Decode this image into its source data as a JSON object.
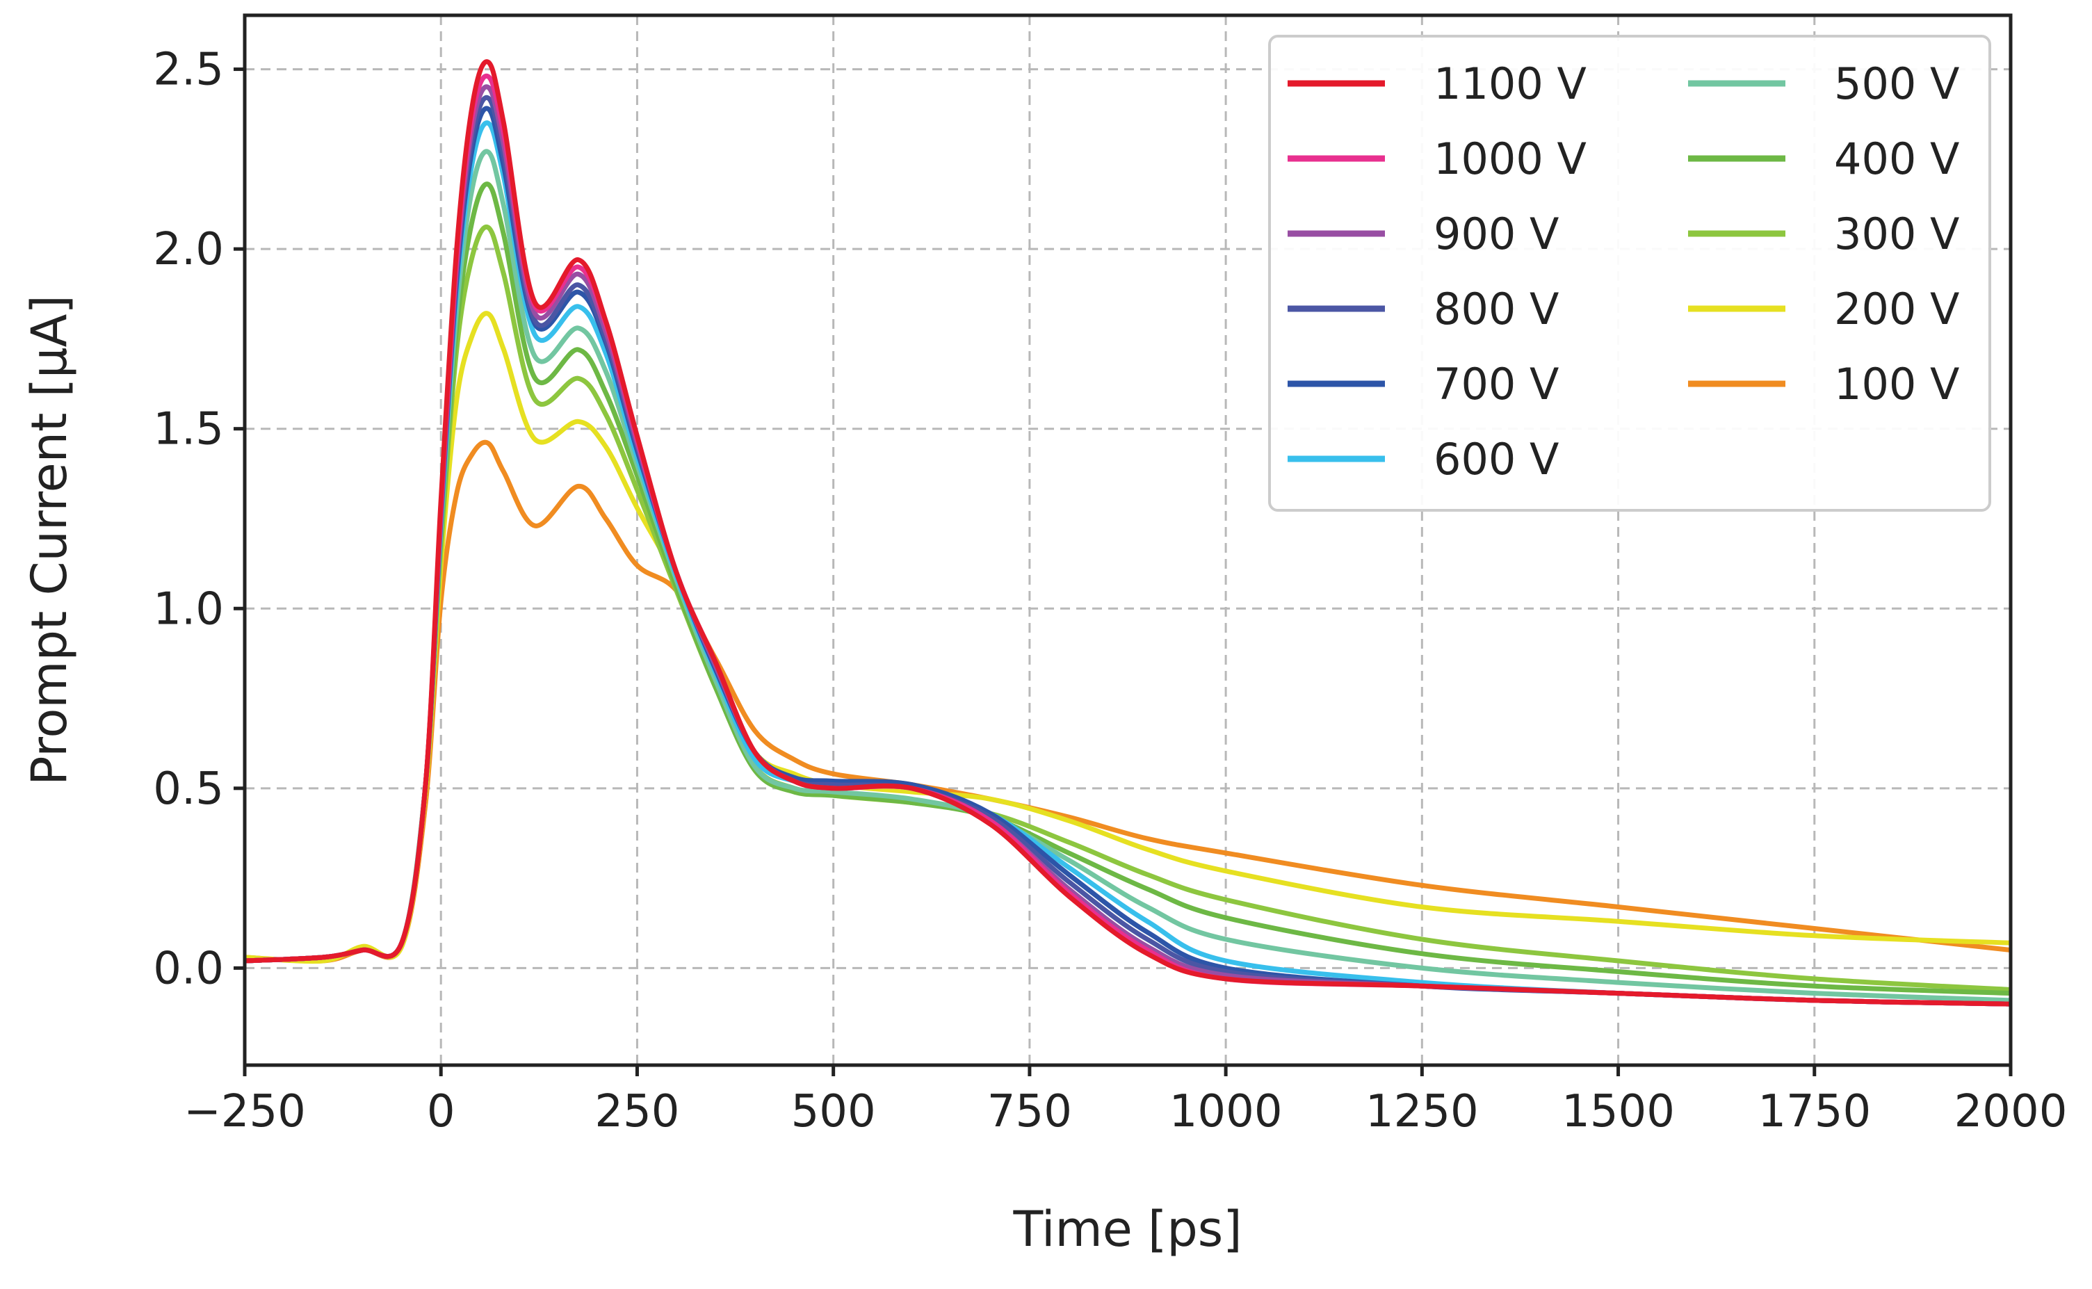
{
  "chart_data": {
    "type": "line",
    "title": "",
    "xlabel": "Time [ps]",
    "ylabel": "Prompt Current [µA]",
    "xlim": [
      -250,
      2000
    ],
    "ylim": [
      -0.27,
      2.65
    ],
    "xticks": [
      -250,
      0,
      250,
      500,
      750,
      1000,
      1250,
      1500,
      1750,
      2000
    ],
    "xtick_labels": [
      "−250",
      "0",
      "250",
      "500",
      "750",
      "1000",
      "1250",
      "1500",
      "1750",
      "2000"
    ],
    "yticks": [
      0.0,
      0.5,
      1.0,
      1.5,
      2.0,
      2.5
    ],
    "ytick_labels": [
      "0.0",
      "0.5",
      "1.0",
      "1.5",
      "2.0",
      "2.5"
    ],
    "grid": true,
    "legend_position": "top-right",
    "legend_columns": 2,
    "series": [
      {
        "name": "1100 V",
        "color": "#e41a2b",
        "x": [
          -250,
          -150,
          -100,
          -50,
          -20,
          0,
          20,
          40,
          60,
          80,
          120,
          175,
          210,
          250,
          300,
          350,
          400,
          450,
          500,
          600,
          700,
          800,
          900,
          1000,
          1250,
          1500,
          1750,
          2000
        ],
        "y": [
          0.02,
          0.03,
          0.05,
          0.07,
          0.5,
          1.3,
          2.0,
          2.4,
          2.52,
          2.35,
          1.85,
          1.97,
          1.8,
          1.48,
          1.1,
          0.85,
          0.6,
          0.52,
          0.5,
          0.5,
          0.4,
          0.2,
          0.04,
          -0.03,
          -0.05,
          -0.07,
          -0.09,
          -0.1
        ]
      },
      {
        "name": "1000 V",
        "color": "#e8308f",
        "x": [
          -250,
          -150,
          -100,
          -50,
          -20,
          0,
          20,
          40,
          60,
          80,
          120,
          175,
          210,
          250,
          300,
          350,
          400,
          450,
          500,
          600,
          700,
          800,
          900,
          1000,
          1250,
          1500,
          1750,
          2000
        ],
        "y": [
          0.02,
          0.03,
          0.05,
          0.07,
          0.5,
          1.28,
          1.97,
          2.37,
          2.48,
          2.32,
          1.84,
          1.95,
          1.79,
          1.47,
          1.1,
          0.85,
          0.6,
          0.52,
          0.5,
          0.5,
          0.41,
          0.21,
          0.05,
          -0.03,
          -0.05,
          -0.07,
          -0.09,
          -0.1
        ]
      },
      {
        "name": "900 V",
        "color": "#984ea3",
        "x": [
          -250,
          -150,
          -100,
          -50,
          -20,
          0,
          20,
          40,
          60,
          80,
          120,
          175,
          210,
          250,
          300,
          350,
          400,
          450,
          500,
          600,
          700,
          800,
          900,
          1000,
          1250,
          1500,
          1750,
          2000
        ],
        "y": [
          0.02,
          0.03,
          0.05,
          0.07,
          0.5,
          1.27,
          1.95,
          2.34,
          2.45,
          2.29,
          1.82,
          1.93,
          1.77,
          1.46,
          1.1,
          0.84,
          0.6,
          0.52,
          0.5,
          0.5,
          0.41,
          0.22,
          0.06,
          -0.02,
          -0.05,
          -0.07,
          -0.09,
          -0.1
        ]
      },
      {
        "name": "800 V",
        "color": "#4b56a4",
        "x": [
          -250,
          -150,
          -100,
          -50,
          -20,
          0,
          20,
          40,
          60,
          80,
          120,
          175,
          210,
          250,
          300,
          350,
          400,
          450,
          500,
          600,
          700,
          800,
          900,
          1000,
          1250,
          1500,
          1750,
          2000
        ],
        "y": [
          0.02,
          0.03,
          0.05,
          0.07,
          0.5,
          1.26,
          1.93,
          2.31,
          2.42,
          2.26,
          1.8,
          1.9,
          1.75,
          1.45,
          1.1,
          0.84,
          0.6,
          0.52,
          0.51,
          0.5,
          0.42,
          0.24,
          0.08,
          -0.01,
          -0.05,
          -0.07,
          -0.09,
          -0.1
        ]
      },
      {
        "name": "700 V",
        "color": "#2d55a8",
        "x": [
          -250,
          -150,
          -100,
          -50,
          -20,
          0,
          20,
          40,
          60,
          80,
          120,
          175,
          210,
          250,
          300,
          350,
          400,
          450,
          500,
          600,
          700,
          800,
          900,
          1000,
          1250,
          1500,
          1750,
          2000
        ],
        "y": [
          0.02,
          0.03,
          0.05,
          0.07,
          0.5,
          1.25,
          1.91,
          2.28,
          2.39,
          2.23,
          1.79,
          1.88,
          1.74,
          1.44,
          1.1,
          0.83,
          0.6,
          0.53,
          0.52,
          0.51,
          0.43,
          0.26,
          0.1,
          0.0,
          -0.05,
          -0.07,
          -0.09,
          -0.1
        ]
      },
      {
        "name": "600 V",
        "color": "#38bfec",
        "x": [
          -250,
          -150,
          -100,
          -50,
          -20,
          0,
          20,
          40,
          60,
          80,
          120,
          175,
          210,
          250,
          300,
          350,
          400,
          450,
          500,
          600,
          700,
          800,
          900,
          1000,
          1250,
          1500,
          1750,
          2000
        ],
        "y": [
          0.02,
          0.03,
          0.05,
          0.07,
          0.5,
          1.24,
          1.88,
          2.24,
          2.35,
          2.2,
          1.76,
          1.84,
          1.71,
          1.42,
          1.09,
          0.82,
          0.58,
          0.52,
          0.51,
          0.5,
          0.43,
          0.28,
          0.13,
          0.02,
          -0.04,
          -0.07,
          -0.09,
          -0.1
        ]
      },
      {
        "name": "500 V",
        "color": "#72c6a1",
        "x": [
          -250,
          -150,
          -100,
          -50,
          -20,
          0,
          20,
          40,
          60,
          80,
          120,
          175,
          210,
          250,
          300,
          350,
          400,
          450,
          500,
          600,
          700,
          800,
          900,
          1000,
          1250,
          1500,
          1750,
          2000
        ],
        "y": [
          0.02,
          0.03,
          0.05,
          0.07,
          0.5,
          1.22,
          1.83,
          2.17,
          2.27,
          2.12,
          1.7,
          1.78,
          1.66,
          1.4,
          1.08,
          0.8,
          0.56,
          0.5,
          0.49,
          0.47,
          0.42,
          0.3,
          0.17,
          0.08,
          0.0,
          -0.04,
          -0.07,
          -0.09
        ]
      },
      {
        "name": "400 V",
        "color": "#6db845",
        "x": [
          -250,
          -150,
          -100,
          -50,
          -20,
          0,
          20,
          40,
          60,
          80,
          120,
          175,
          210,
          250,
          300,
          350,
          400,
          450,
          500,
          600,
          700,
          800,
          900,
          1000,
          1250,
          1500,
          1750,
          2000
        ],
        "y": [
          0.02,
          0.03,
          0.05,
          0.07,
          0.5,
          1.2,
          1.78,
          2.08,
          2.18,
          2.04,
          1.64,
          1.72,
          1.6,
          1.37,
          1.06,
          0.78,
          0.55,
          0.49,
          0.48,
          0.46,
          0.42,
          0.32,
          0.22,
          0.14,
          0.04,
          -0.01,
          -0.05,
          -0.07
        ]
      },
      {
        "name": "300 V",
        "color": "#8dc63f",
        "x": [
          -250,
          -150,
          -100,
          -50,
          -20,
          0,
          20,
          40,
          60,
          80,
          120,
          175,
          210,
          250,
          300,
          350,
          400,
          450,
          500,
          600,
          700,
          800,
          900,
          1000,
          1250,
          1500,
          1750,
          2000
        ],
        "y": [
          0.02,
          0.03,
          0.05,
          0.07,
          0.5,
          1.17,
          1.72,
          1.98,
          2.06,
          1.93,
          1.58,
          1.64,
          1.54,
          1.33,
          1.05,
          0.78,
          0.56,
          0.5,
          0.48,
          0.46,
          0.43,
          0.35,
          0.26,
          0.19,
          0.08,
          0.02,
          -0.03,
          -0.06
        ]
      },
      {
        "name": "200 V",
        "color": "#e6e021",
        "x": [
          -250,
          -150,
          -100,
          -50,
          -20,
          0,
          20,
          40,
          60,
          80,
          120,
          175,
          210,
          250,
          300,
          350,
          400,
          450,
          500,
          600,
          700,
          800,
          900,
          1000,
          1250,
          1500,
          1750,
          2000
        ],
        "y": [
          0.03,
          0.02,
          0.06,
          0.06,
          0.48,
          1.12,
          1.58,
          1.76,
          1.82,
          1.72,
          1.47,
          1.52,
          1.45,
          1.28,
          1.08,
          0.82,
          0.6,
          0.54,
          0.51,
          0.49,
          0.47,
          0.41,
          0.33,
          0.27,
          0.17,
          0.13,
          0.09,
          0.07
        ]
      },
      {
        "name": "100 V",
        "color": "#f08c21",
        "x": [
          -250,
          -150,
          -100,
          -50,
          -20,
          0,
          20,
          40,
          60,
          80,
          120,
          175,
          210,
          250,
          300,
          350,
          400,
          450,
          500,
          600,
          700,
          800,
          900,
          1000,
          1250,
          1500,
          1750,
          2000
        ],
        "y": [
          0.03,
          0.02,
          0.05,
          0.06,
          0.45,
          1.02,
          1.32,
          1.43,
          1.46,
          1.38,
          1.23,
          1.34,
          1.25,
          1.12,
          1.05,
          0.86,
          0.66,
          0.58,
          0.54,
          0.51,
          0.47,
          0.42,
          0.36,
          0.32,
          0.23,
          0.17,
          0.11,
          0.05
        ]
      }
    ]
  }
}
